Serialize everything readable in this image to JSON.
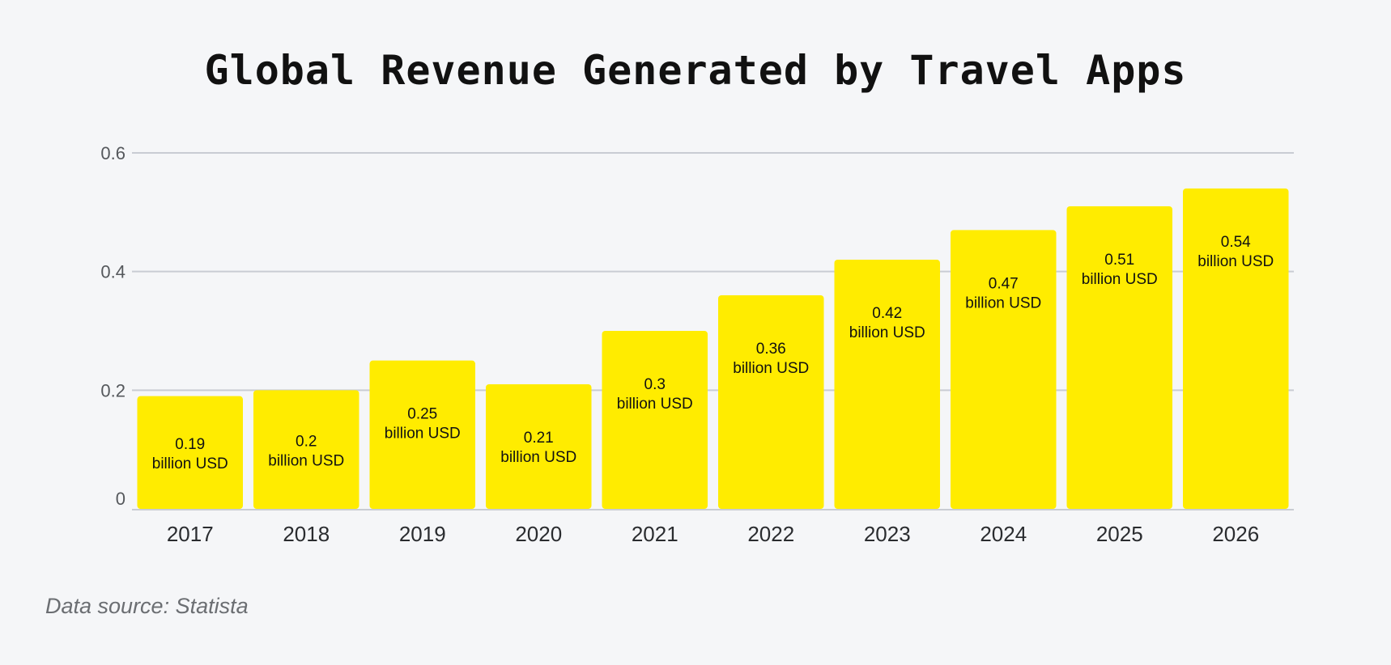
{
  "source_note": "Data source: Statista",
  "colors": {
    "bar": "#FFEC00",
    "grid": "#c9ccd3",
    "background": "#f5f6f8"
  },
  "chart_data": {
    "type": "bar",
    "title": "Global Revenue Generated by Travel Apps",
    "xlabel": "",
    "ylabel": "",
    "categories": [
      "2017",
      "2018",
      "2019",
      "2020",
      "2021",
      "2022",
      "2023",
      "2024",
      "2025",
      "2026"
    ],
    "values": [
      0.19,
      0.2,
      0.25,
      0.21,
      0.3,
      0.36,
      0.42,
      0.47,
      0.51,
      0.54
    ],
    "data_labels": [
      [
        "0.19",
        "billion USD"
      ],
      [
        "0.2",
        "billion USD"
      ],
      [
        "0.25",
        "billion USD"
      ],
      [
        "0.21",
        "billion USD"
      ],
      [
        "0.3",
        "billion USD"
      ],
      [
        "0.36",
        "billion USD"
      ],
      [
        "0.42",
        "billion USD"
      ],
      [
        "0.47",
        "billion USD"
      ],
      [
        "0.51",
        "billion USD"
      ],
      [
        "0.54",
        "billion USD"
      ]
    ],
    "yticks": [
      0,
      0.2,
      0.4,
      0.6
    ],
    "ytick_labels": [
      "0",
      "0.2",
      "0.4",
      "0.6"
    ],
    "ylim": [
      0,
      0.6
    ],
    "grid": true,
    "legend": "none"
  }
}
